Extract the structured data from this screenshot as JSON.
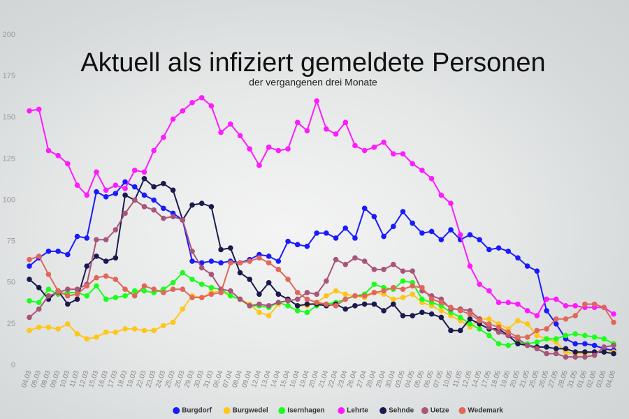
{
  "chart_data": {
    "type": "line",
    "title": "Aktuell als infiziert gemeldete Personen",
    "subtitle": "der vergangenen drei Monate",
    "categories": [
      "04.03",
      "05.03",
      "08.03",
      "09.03",
      "10.03",
      "11.03",
      "12.03",
      "15.03",
      "16.03",
      "17.03",
      "18.03",
      "19.03",
      "22.03",
      "23.03",
      "24.03",
      "25.03",
      "26.03",
      "29.03",
      "30.03",
      "31.03",
      "06.04",
      "07.04",
      "08.04",
      "09.04",
      "12.04",
      "13.04",
      "14.04",
      "15.04",
      "16.04",
      "19.04",
      "20.04",
      "21.04",
      "22.04",
      "23.04",
      "26.04",
      "27.04",
      "28.04",
      "29.04",
      "30.04",
      "03.05",
      "04.05",
      "05.05",
      "06.05",
      "07.05",
      "10.05",
      "11.05",
      "12.05",
      "14.05",
      "17.05",
      "18.05",
      "19.05",
      "20.05",
      "21.05",
      "25.05",
      "26.05",
      "27.05",
      "28.05",
      "31.05",
      "01.06",
      "02.06",
      "03.06",
      "04.06"
    ],
    "ylim": [
      0,
      200
    ],
    "yticks": [
      0,
      25,
      50,
      75,
      100,
      125,
      150,
      175,
      200
    ],
    "legend": "bottom",
    "series": [
      {
        "name": "Burgdorf",
        "color": "#1a1aff",
        "values": [
          60,
          65,
          69,
          69,
          67,
          78,
          77,
          105,
          102,
          104,
          111,
          108,
          103,
          100,
          95,
          92,
          88,
          63,
          62,
          63,
          62,
          63,
          62,
          64,
          67,
          66,
          63,
          75,
          73,
          72,
          80,
          80,
          77,
          83,
          77,
          95,
          90,
          78,
          84,
          93,
          86,
          80,
          81,
          76,
          82,
          76,
          79,
          76,
          70,
          71,
          69,
          65,
          60,
          57,
          33,
          25,
          16,
          13,
          13,
          12,
          10,
          9
        ]
      },
      {
        "name": "Burgwedel",
        "color": "#ffc61a",
        "values": [
          21,
          23,
          23,
          22,
          25,
          19,
          16,
          17,
          20,
          20,
          22,
          22,
          21,
          21,
          24,
          26,
          34,
          42,
          41,
          44,
          45,
          42,
          40,
          37,
          32,
          30,
          37,
          40,
          36,
          36,
          38,
          42,
          45,
          43,
          42,
          41,
          44,
          43,
          40,
          41,
          43,
          38,
          36,
          33,
          30,
          27,
          23,
          28,
          28,
          25,
          22,
          27,
          25,
          18,
          16,
          14,
          8,
          7,
          7,
          8,
          8,
          8
        ]
      },
      {
        "name": "Isernhagen",
        "color": "#1aff1a",
        "values": [
          39,
          38,
          46,
          43,
          44,
          44,
          42,
          48,
          40,
          41,
          42,
          45,
          45,
          44,
          46,
          50,
          56,
          52,
          49,
          47,
          46,
          42,
          40,
          36,
          36,
          35,
          38,
          36,
          33,
          32,
          36,
          37,
          38,
          40,
          42,
          43,
          49,
          47,
          46,
          51,
          50,
          40,
          38,
          36,
          32,
          29,
          25,
          22,
          18,
          13,
          12,
          14,
          13,
          14,
          16,
          16,
          18,
          19,
          18,
          17,
          16,
          13
        ]
      },
      {
        "name": "Lehrte",
        "color": "#ff1aff",
        "values": [
          154,
          155,
          130,
          127,
          122,
          109,
          103,
          117,
          106,
          109,
          107,
          118,
          117,
          130,
          138,
          149,
          154,
          159,
          162,
          157,
          141,
          146,
          139,
          131,
          121,
          132,
          130,
          131,
          147,
          142,
          160,
          143,
          140,
          147,
          133,
          130,
          132,
          135,
          128,
          128,
          122,
          118,
          113,
          103,
          98,
          79,
          60,
          49,
          45,
          38,
          38,
          37,
          33,
          30,
          40,
          40,
          36,
          36,
          35,
          35,
          35,
          31
        ]
      },
      {
        "name": "Sehnde",
        "color": "#1a1a4d",
        "values": [
          52,
          47,
          40,
          45,
          37,
          40,
          60,
          66,
          63,
          65,
          103,
          100,
          113,
          108,
          110,
          106,
          88,
          97,
          98,
          96,
          70,
          71,
          56,
          52,
          43,
          50,
          43,
          40,
          36,
          37,
          37,
          36,
          37,
          34,
          36,
          37,
          37,
          33,
          37,
          30,
          30,
          32,
          31,
          29,
          21,
          21,
          28,
          25,
          22,
          22,
          18,
          13,
          12,
          11,
          11,
          10,
          10,
          8,
          8,
          8,
          8,
          7
        ]
      },
      {
        "name": "Uetze",
        "color": "#a8557a",
        "values": [
          29,
          34,
          42,
          44,
          46,
          46,
          49,
          76,
          76,
          82,
          92,
          100,
          96,
          94,
          89,
          90,
          88,
          69,
          59,
          55,
          46,
          45,
          40,
          36,
          37,
          36,
          38,
          39,
          40,
          44,
          43,
          51,
          64,
          61,
          65,
          63,
          58,
          58,
          61,
          57,
          57,
          45,
          42,
          40,
          34,
          34,
          33,
          28,
          23,
          20,
          18,
          16,
          12,
          10,
          7,
          7,
          5,
          5,
          5,
          6,
          11,
          12
        ]
      },
      {
        "name": "Wedemark",
        "color": "#e0675a",
        "values": [
          64,
          66,
          55,
          45,
          42,
          43,
          48,
          53,
          54,
          52,
          46,
          42,
          48,
          46,
          44,
          46,
          46,
          41,
          41,
          43,
          44,
          62,
          62,
          63,
          65,
          62,
          58,
          52,
          44,
          40,
          38,
          37,
          36,
          40,
          42,
          42,
          44,
          45,
          47,
          46,
          48,
          47,
          40,
          38,
          35,
          33,
          31,
          27,
          25,
          23,
          20,
          17,
          17,
          21,
          22,
          28,
          28,
          30,
          37,
          37,
          35,
          26
        ]
      }
    ]
  }
}
